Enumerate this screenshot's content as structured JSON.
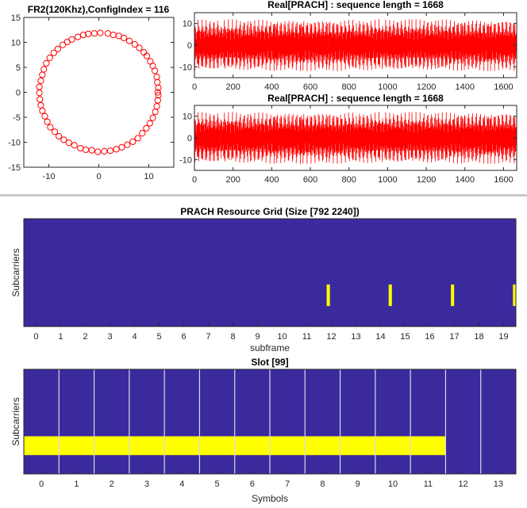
{
  "chart_data": [
    {
      "type": "scatter",
      "title": "FR2(120Khz),ConfigIndex = 116",
      "xlim": [
        -15,
        15
      ],
      "ylim": [
        -15,
        15
      ],
      "xticks": [
        "-10",
        "0",
        "10"
      ],
      "yticks": [
        "15",
        "10",
        "5",
        "0",
        "-5",
        "-10",
        "-15"
      ],
      "marker": "circle",
      "marker_color": "#FF0000",
      "series": [
        {
          "points": [
            [
              11.8,
              0.0
            ],
            [
              11.9,
              0.9
            ],
            [
              11.7,
              2.0
            ],
            [
              11.6,
              3.1
            ],
            [
              11.2,
              4.3
            ],
            [
              10.8,
              5.3
            ],
            [
              10.3,
              6.2
            ],
            [
              9.6,
              7.3
            ],
            [
              9.0,
              8.0
            ],
            [
              8.1,
              8.9
            ],
            [
              7.2,
              9.6
            ],
            [
              6.1,
              10.3
            ],
            [
              5.0,
              10.9
            ],
            [
              4.0,
              11.3
            ],
            [
              2.9,
              11.5
            ],
            [
              1.8,
              11.8
            ],
            [
              0.3,
              11.9
            ],
            [
              -0.9,
              11.8
            ],
            [
              -2.1,
              11.7
            ],
            [
              -3.1,
              11.5
            ],
            [
              -4.2,
              11.1
            ],
            [
              -5.4,
              10.6
            ],
            [
              -6.3,
              10.1
            ],
            [
              -7.2,
              9.5
            ],
            [
              -8.2,
              8.7
            ],
            [
              -9.0,
              7.9
            ],
            [
              -9.8,
              6.9
            ],
            [
              -10.5,
              5.8
            ],
            [
              -11.0,
              4.6
            ],
            [
              -11.3,
              3.5
            ],
            [
              -11.6,
              2.3
            ],
            [
              -11.9,
              1.1
            ],
            [
              -11.9,
              -0.1
            ],
            [
              -11.8,
              -1.4
            ],
            [
              -11.6,
              -2.6
            ],
            [
              -11.3,
              -3.7
            ],
            [
              -10.8,
              -4.8
            ],
            [
              -10.3,
              -5.9
            ],
            [
              -9.7,
              -7.0
            ],
            [
              -8.8,
              -7.9
            ],
            [
              -8.0,
              -8.8
            ],
            [
              -7.0,
              -9.5
            ],
            [
              -6.0,
              -10.1
            ],
            [
              -4.9,
              -10.6
            ],
            [
              -3.7,
              -11.2
            ],
            [
              -2.6,
              -11.5
            ],
            [
              -1.4,
              -11.6
            ],
            [
              -0.2,
              -11.9
            ],
            [
              1.1,
              -11.8
            ],
            [
              2.3,
              -11.7
            ],
            [
              3.5,
              -11.4
            ],
            [
              4.6,
              -11.0
            ],
            [
              5.7,
              -10.5
            ],
            [
              6.8,
              -9.9
            ],
            [
              7.8,
              -9.2
            ],
            [
              8.7,
              -8.2
            ],
            [
              9.5,
              -7.2
            ],
            [
              10.2,
              -6.2
            ],
            [
              10.8,
              -5.1
            ],
            [
              11.3,
              -3.9
            ],
            [
              11.6,
              -2.8
            ],
            [
              11.8,
              -1.6
            ],
            [
              11.9,
              -0.6
            ]
          ]
        }
      ]
    },
    {
      "type": "line",
      "title": "Real[PRACH] : sequence length = 1668",
      "xlim": [
        0,
        1668
      ],
      "ylim": [
        -15,
        15
      ],
      "xticks": [
        "0",
        "200",
        "400",
        "600",
        "800",
        "1000",
        "1200",
        "1400",
        "1600"
      ],
      "yticks": [
        "10",
        "0",
        "-10"
      ],
      "color": "#FF0000",
      "segments": [
        [
          0,
          139
        ],
        [
          139,
          278
        ],
        [
          278,
          417
        ],
        [
          417,
          556
        ],
        [
          556,
          695
        ],
        [
          695,
          834
        ],
        [
          834,
          973
        ],
        [
          973,
          1112
        ],
        [
          1112,
          1251
        ],
        [
          1251,
          1390
        ],
        [
          1390,
          1529
        ],
        [
          1529,
          1668
        ]
      ],
      "amplitude": 12
    },
    {
      "type": "line",
      "title": "Real[PRACH] : sequence length = 1668",
      "xlim": [
        0,
        1668
      ],
      "ylim": [
        -15,
        15
      ],
      "xticks": [
        "0",
        "200",
        "400",
        "600",
        "800",
        "1000",
        "1200",
        "1400",
        "1600"
      ],
      "yticks": [
        "10",
        "0",
        "-10"
      ],
      "color": "#FF0000",
      "segments": [
        [
          0,
          139
        ],
        [
          139,
          278
        ],
        [
          278,
          417
        ],
        [
          417,
          556
        ],
        [
          556,
          695
        ],
        [
          695,
          834
        ],
        [
          834,
          973
        ],
        [
          973,
          1112
        ],
        [
          1112,
          1251
        ],
        [
          1251,
          1390
        ],
        [
          1390,
          1529
        ],
        [
          1529,
          1668
        ]
      ],
      "amplitude": 12
    },
    {
      "type": "heatmap",
      "title": "PRACH Resource Grid (Size [792 2240])",
      "xlabel": "subframe",
      "ylabel": "Subcarriers",
      "xlim": [
        -0.5,
        19.5
      ],
      "xticks": [
        "0",
        "1",
        "2",
        "3",
        "4",
        "5",
        "6",
        "7",
        "8",
        "9",
        "10",
        "11",
        "12",
        "13",
        "14",
        "15",
        "16",
        "17",
        "18",
        "19"
      ],
      "background": "#3A2A9E",
      "highlight": "#FFFF00",
      "highlight_blocks": [
        {
          "x": [
            11.81,
            11.94
          ],
          "y_fraction": [
            0.61,
            0.81
          ]
        },
        {
          "x": [
            14.33,
            14.46
          ],
          "y_fraction": [
            0.61,
            0.81
          ]
        },
        {
          "x": [
            16.86,
            16.99
          ],
          "y_fraction": [
            0.61,
            0.81
          ]
        },
        {
          "x": [
            19.38,
            19.5
          ],
          "y_fraction": [
            0.61,
            0.81
          ]
        }
      ]
    },
    {
      "type": "heatmap",
      "title": "Slot [99]",
      "xlabel": "Symbols",
      "ylabel": "Subcarriers",
      "xlim": [
        -0.5,
        13.5
      ],
      "xticks": [
        "0",
        "1",
        "2",
        "3",
        "4",
        "5",
        "6",
        "7",
        "8",
        "9",
        "10",
        "11",
        "12",
        "13"
      ],
      "background": "#3A2A9E",
      "highlight": "#FFFF00",
      "separator_color": "#D9D9E8",
      "separators": [
        0.5,
        1.5,
        2.5,
        3.5,
        4.5,
        5.5,
        6.5,
        7.5,
        8.5,
        9.5,
        10.5,
        11.5,
        12.5
      ],
      "highlight_blocks": [
        {
          "x": [
            -0.5,
            11.5
          ],
          "y_fraction": [
            0.64,
            0.82
          ]
        }
      ]
    }
  ]
}
